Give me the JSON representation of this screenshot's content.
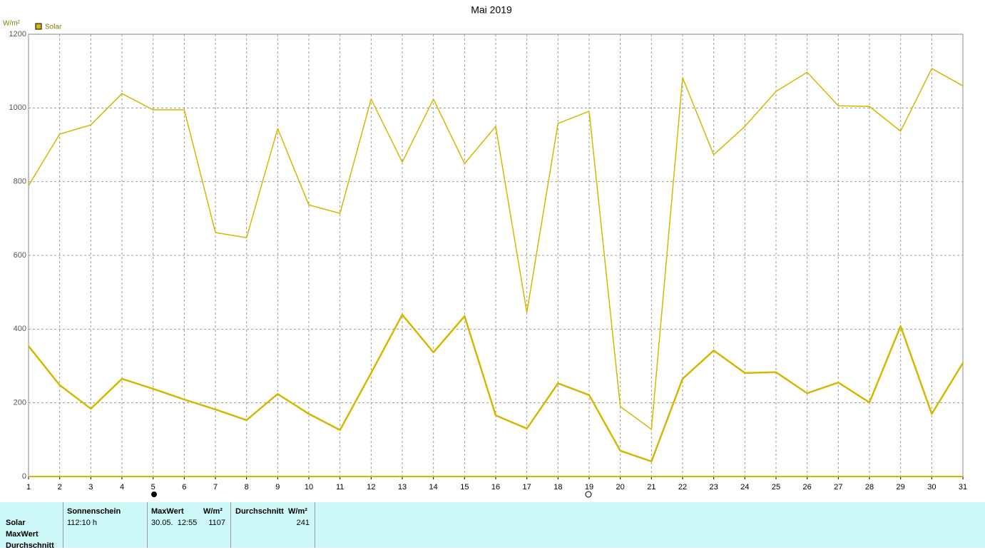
{
  "chart_data": {
    "type": "line",
    "title": "Mai 2019",
    "y_label": "W/m²",
    "x": [
      1,
      2,
      3,
      4,
      5,
      6,
      7,
      8,
      9,
      10,
      11,
      12,
      13,
      14,
      15,
      16,
      17,
      18,
      19,
      20,
      21,
      22,
      23,
      24,
      25,
      26,
      27,
      28,
      29,
      30,
      31
    ],
    "series": [
      {
        "name": "Solar",
        "color": "#d4b800",
        "width": 1.5,
        "values": [
          789,
          929,
          954,
          1039,
          995,
          995,
          662,
          648,
          944,
          737,
          714,
          1024,
          853,
          1024,
          849,
          950,
          445,
          958,
          991,
          190,
          128,
          1082,
          873,
          950,
          1045,
          1097,
          1006,
          1004,
          937,
          1107,
          1060
        ]
      },
      {
        "color": "#d4b800",
        "width": 2.5,
        "values": [
          354,
          248,
          184,
          265,
          238,
          209,
          182,
          153,
          224,
          170,
          126,
          281,
          439,
          337,
          435,
          166,
          130,
          253,
          221,
          70,
          41,
          265,
          342,
          281,
          283,
          226,
          255,
          201,
          408,
          170,
          308
        ]
      }
    ],
    "xlim": [
      1,
      31
    ],
    "xticks": [
      1,
      2,
      3,
      4,
      5,
      6,
      7,
      8,
      9,
      10,
      11,
      12,
      13,
      14,
      15,
      16,
      17,
      18,
      19,
      20,
      21,
      22,
      23,
      24,
      25,
      26,
      27,
      28,
      29,
      30,
      31
    ],
    "ylim": [
      0,
      1200
    ],
    "yticks": [
      0,
      200,
      400,
      600,
      800,
      1000,
      1200
    ],
    "grid": true
  },
  "table": {
    "row_labels": [
      "Solar",
      "MaxWert",
      "Durchschnitt"
    ],
    "columns": [
      {
        "header": "Sonnenschein",
        "values": [
          "112:10 h"
        ]
      },
      {
        "header": "MaxWert",
        "unit": "W/m²",
        "values": [
          "30.05.  12:55",
          "1107"
        ]
      },
      {
        "header": "Durchschnitt",
        "unit": "W/m²",
        "values": [
          "241"
        ]
      }
    ]
  }
}
